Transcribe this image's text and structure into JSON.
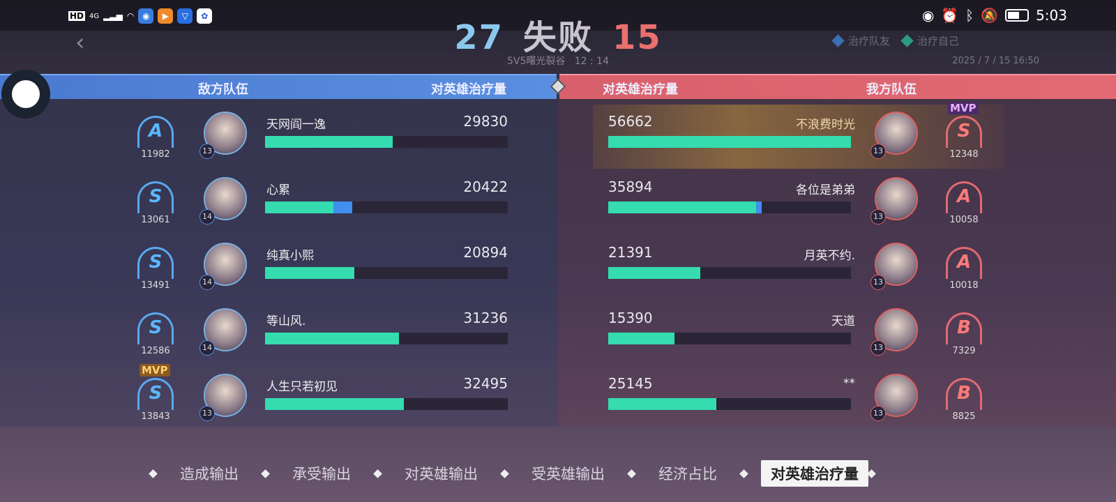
{
  "status_bar": {
    "left": [
      "HD",
      "4G"
    ],
    "time": "5:03",
    "icons": [
      "signal-icon",
      "wifi-icon",
      "app-icon",
      "app-icon",
      "app-icon",
      "app-icon"
    ],
    "right_icons": [
      "eye-icon",
      "alarm-icon",
      "bluetooth-icon",
      "mute-icon",
      "battery-icon"
    ]
  },
  "header": {
    "blue_kills": "27",
    "result": "失败",
    "red_kills": "15",
    "mode": "5V5曙光裂谷",
    "duration": "12 : 14",
    "datetime": "2025 / 7 / 15  16:50"
  },
  "legend": [
    {
      "label": "治疗队友",
      "color": "#3f8ef0"
    },
    {
      "label": "治疗自己",
      "color": "#34dcb0"
    }
  ],
  "columns": {
    "enemy_team": "敌方队伍",
    "enemy_metric": "对英雄治疗量",
    "ally_metric": "对英雄治疗量",
    "ally_team": "我方队伍"
  },
  "max_value": 56662,
  "enemy": [
    {
      "grade": "A",
      "score": "11982",
      "level": "13",
      "name": "天网阎一逸",
      "value": "29830",
      "teammate_share": 0
    },
    {
      "grade": "S",
      "score": "13061",
      "level": "14",
      "name": "心累",
      "value": "20422",
      "teammate_share": 0.22
    },
    {
      "grade": "S",
      "score": "13491",
      "level": "14",
      "name": "纯真小熙",
      "value": "20894",
      "teammate_share": 0
    },
    {
      "grade": "S",
      "score": "12586",
      "level": "14",
      "name": "等山风.",
      "value": "31236",
      "teammate_share": 0
    },
    {
      "grade": "S",
      "score": "13843",
      "level": "13",
      "name": "人生只若初见",
      "value": "32495",
      "teammate_share": 0,
      "mvp": "MVP"
    }
  ],
  "ally": [
    {
      "grade": "S",
      "score": "12348",
      "level": "13",
      "name": "不浪费时光",
      "value": "56662",
      "teammate_share": 0,
      "mvp": "MVP"
    },
    {
      "grade": "A",
      "score": "10058",
      "level": "13",
      "name": "各位是弟弟",
      "value": "35894",
      "teammate_share": 0.04
    },
    {
      "grade": "A",
      "score": "10018",
      "level": "13",
      "name": "月英不约.",
      "value": "21391",
      "teammate_share": 0
    },
    {
      "grade": "B",
      "score": "7329",
      "level": "13",
      "name": "天道",
      "value": "15390",
      "teammate_share": 0
    },
    {
      "grade": "B",
      "score": "8825",
      "level": "13",
      "name": "**",
      "value": "25145",
      "teammate_share": 0
    }
  ],
  "tabs": [
    {
      "label": "造成输出"
    },
    {
      "label": "承受输出"
    },
    {
      "label": "对英雄输出"
    },
    {
      "label": "受英雄输出"
    },
    {
      "label": "经济占比"
    },
    {
      "label": "对英雄治疗量",
      "active": true
    }
  ],
  "colors": {
    "enemy": "#5a8ee0",
    "ally": "#e26a74",
    "self_heal": "#34dcb0",
    "teammate_heal": "#3f8ef0"
  }
}
